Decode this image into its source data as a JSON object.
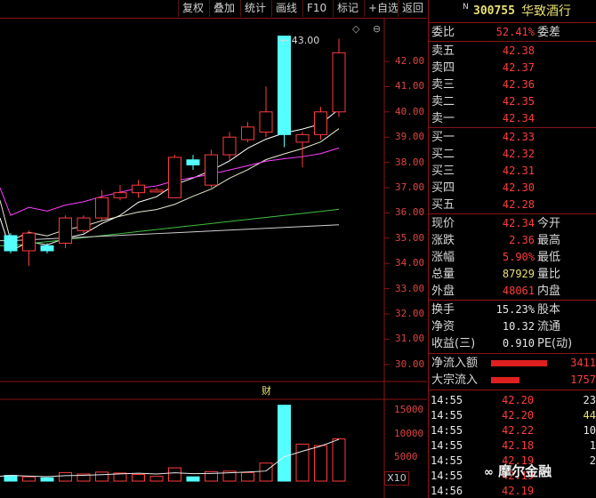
{
  "toolbar": {
    "items": [
      "复权",
      "叠加",
      "统计",
      "画线",
      "F10",
      "标记",
      "+自选",
      "返回"
    ]
  },
  "chart": {
    "price_axis": [
      "43.00",
      "42.00",
      "41.00",
      "40.00",
      "39.00",
      "38.00",
      "37.00",
      "36.00",
      "35.00",
      "34.00",
      "33.00",
      "32.00",
      "31.00",
      "30.00"
    ],
    "high_marker": "43.00",
    "volume_axis": [
      "15000",
      "10000",
      "5000"
    ],
    "volume_unit": "X10",
    "event_marker": "财",
    "colors": {
      "up": "#ff3c3c",
      "down": "#54ffff",
      "ma5": "#ffffff",
      "ma10": "#e8e070",
      "ma20": "#ff40ff",
      "ma60": "#40c040",
      "grid": "#8a1515"
    },
    "candles": [
      {
        "o": 35.1,
        "c": 34.5,
        "h": 35.2,
        "l": 34.4,
        "v": 1200
      },
      {
        "o": 34.5,
        "c": 35.2,
        "h": 35.3,
        "l": 33.9,
        "v": 900
      },
      {
        "o": 34.7,
        "c": 34.5,
        "h": 34.8,
        "l": 34.4,
        "v": 700
      },
      {
        "o": 34.8,
        "c": 35.8,
        "h": 35.9,
        "l": 34.6,
        "v": 1800
      },
      {
        "o": 35.3,
        "c": 35.8,
        "h": 35.9,
        "l": 35.2,
        "v": 1500
      },
      {
        "o": 35.8,
        "c": 36.6,
        "h": 36.9,
        "l": 35.7,
        "v": 1900
      },
      {
        "o": 36.6,
        "c": 36.8,
        "h": 37.1,
        "l": 36.5,
        "v": 1700
      },
      {
        "o": 36.8,
        "c": 37.1,
        "h": 37.3,
        "l": 36.6,
        "v": 1400
      },
      {
        "o": 36.9,
        "c": 36.9,
        "h": 37.0,
        "l": 36.8,
        "v": 1000
      },
      {
        "o": 36.6,
        "c": 38.2,
        "h": 38.3,
        "l": 36.6,
        "v": 2800
      },
      {
        "o": 38.1,
        "c": 37.9,
        "h": 38.3,
        "l": 37.7,
        "v": 900
      },
      {
        "o": 37.1,
        "c": 38.3,
        "h": 38.5,
        "l": 37.0,
        "v": 2000
      },
      {
        "o": 38.3,
        "c": 39.0,
        "h": 39.2,
        "l": 38.1,
        "v": 2100
      },
      {
        "o": 38.9,
        "c": 39.4,
        "h": 39.6,
        "l": 38.8,
        "v": 1800
      },
      {
        "o": 39.2,
        "c": 40.0,
        "h": 41.0,
        "l": 39.0,
        "v": 3800
      },
      {
        "o": 43.0,
        "c": 39.1,
        "h": 43.0,
        "l": 38.6,
        "v": 16000
      },
      {
        "o": 38.8,
        "c": 39.1,
        "h": 39.2,
        "l": 37.8,
        "v": 7800
      },
      {
        "o": 39.1,
        "c": 40.0,
        "h": 40.2,
        "l": 38.9,
        "v": 7500
      },
      {
        "o": 40.0,
        "c": 42.34,
        "h": 42.9,
        "l": 39.8,
        "v": 8900
      }
    ]
  },
  "stock": {
    "flag": "N",
    "code": "300755",
    "name": "华致酒行"
  },
  "order_ratio": {
    "label": "委比",
    "value": "52.41%",
    "label2": "委差"
  },
  "asks": [
    {
      "label": "卖五",
      "price": "42.38"
    },
    {
      "label": "卖四",
      "price": "42.37"
    },
    {
      "label": "卖三",
      "price": "42.36"
    },
    {
      "label": "卖二",
      "price": "42.35"
    },
    {
      "label": "卖一",
      "price": "42.34"
    }
  ],
  "bids": [
    {
      "label": "买一",
      "price": "42.33"
    },
    {
      "label": "买二",
      "price": "42.32"
    },
    {
      "label": "买三",
      "price": "42.31"
    },
    {
      "label": "买四",
      "price": "42.30"
    },
    {
      "label": "买五",
      "price": "42.28"
    }
  ],
  "quote": [
    {
      "label": "现价",
      "value": "42.34",
      "label2": "今开"
    },
    {
      "label": "涨跌",
      "value": "2.36",
      "label2": "最高"
    },
    {
      "label": "涨幅",
      "value": "5.90%",
      "label2": "最低"
    },
    {
      "label": "总量",
      "value": "87929",
      "label2": "量比"
    },
    {
      "label": "外盘",
      "value": "48061",
      "label2": "内盘"
    }
  ],
  "fundamentals": [
    {
      "label": "换手",
      "value": "15.23%",
      "label2": "股本"
    },
    {
      "label": "净资",
      "value": "10.32",
      "label2": "流通"
    },
    {
      "label": "收益(三)",
      "value": "0.910",
      "label2": "PE(动)"
    }
  ],
  "flows": [
    {
      "label": "净流入额",
      "value": "3411",
      "bar": 0.9
    },
    {
      "label": "大宗流入",
      "value": "1757",
      "bar": 0.45
    }
  ],
  "ticks": [
    {
      "time": "14:55",
      "price": "42.20",
      "vol": "23",
      "color": "#e8e8e8"
    },
    {
      "time": "14:55",
      "price": "42.20",
      "vol": "44",
      "color": "#e8e070"
    },
    {
      "time": "14:55",
      "price": "42.22",
      "vol": "10",
      "color": "#e8e8e8"
    },
    {
      "time": "14:55",
      "price": "42.18",
      "vol": "1",
      "color": "#e8e8e8"
    },
    {
      "time": "14:55",
      "price": "42.19",
      "vol": "2",
      "color": "#e8e8e8"
    },
    {
      "time": "14:55",
      "price": "42.19",
      "vol": "",
      "color": "#e8e8e8"
    },
    {
      "time": "14:56",
      "price": "42.19",
      "vol": "",
      "color": "#e8e8e8"
    }
  ],
  "watermark": "摩尔金融"
}
